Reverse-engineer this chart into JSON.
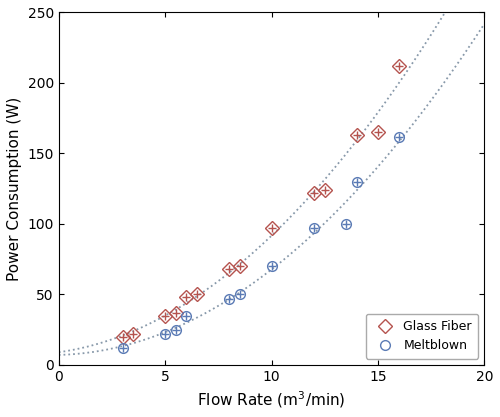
{
  "glass_fiber_x": [
    3.0,
    3.5,
    5.0,
    5.5,
    6.0,
    6.5,
    8.0,
    8.5,
    10.0,
    12.0,
    12.5,
    14.0,
    15.0,
    16.0
  ],
  "glass_fiber_y": [
    20.0,
    22.0,
    35.0,
    37.0,
    48.0,
    50.0,
    68.0,
    70.0,
    97.0,
    122.0,
    124.0,
    163.0,
    165.0,
    212.0
  ],
  "meltblown_x": [
    3.0,
    5.0,
    5.5,
    6.0,
    8.0,
    8.5,
    10.0,
    12.0,
    13.5,
    14.0,
    16.0
  ],
  "meltblown_y": [
    12.0,
    22.0,
    25.0,
    35.0,
    47.0,
    50.0,
    70.0,
    97.0,
    100.0,
    130.0,
    162.0
  ],
  "glass_fiber_color": "#b5534e",
  "meltblown_color": "#5b7bb5",
  "fit_color": "#8899aa",
  "xlabel": "Flow Rate (m$^3$/min)",
  "ylabel": "Power Consumption (W)",
  "xlim": [
    0,
    20
  ],
  "ylim": [
    0,
    250
  ],
  "xticks": [
    0,
    5,
    10,
    15,
    20
  ],
  "yticks": [
    0,
    50,
    100,
    150,
    200,
    250
  ],
  "legend_labels": [
    "Glass Fiber",
    "Meltblown"
  ],
  "figsize": [
    5.0,
    4.17
  ],
  "dpi": 100,
  "background_color": "#ffffff"
}
